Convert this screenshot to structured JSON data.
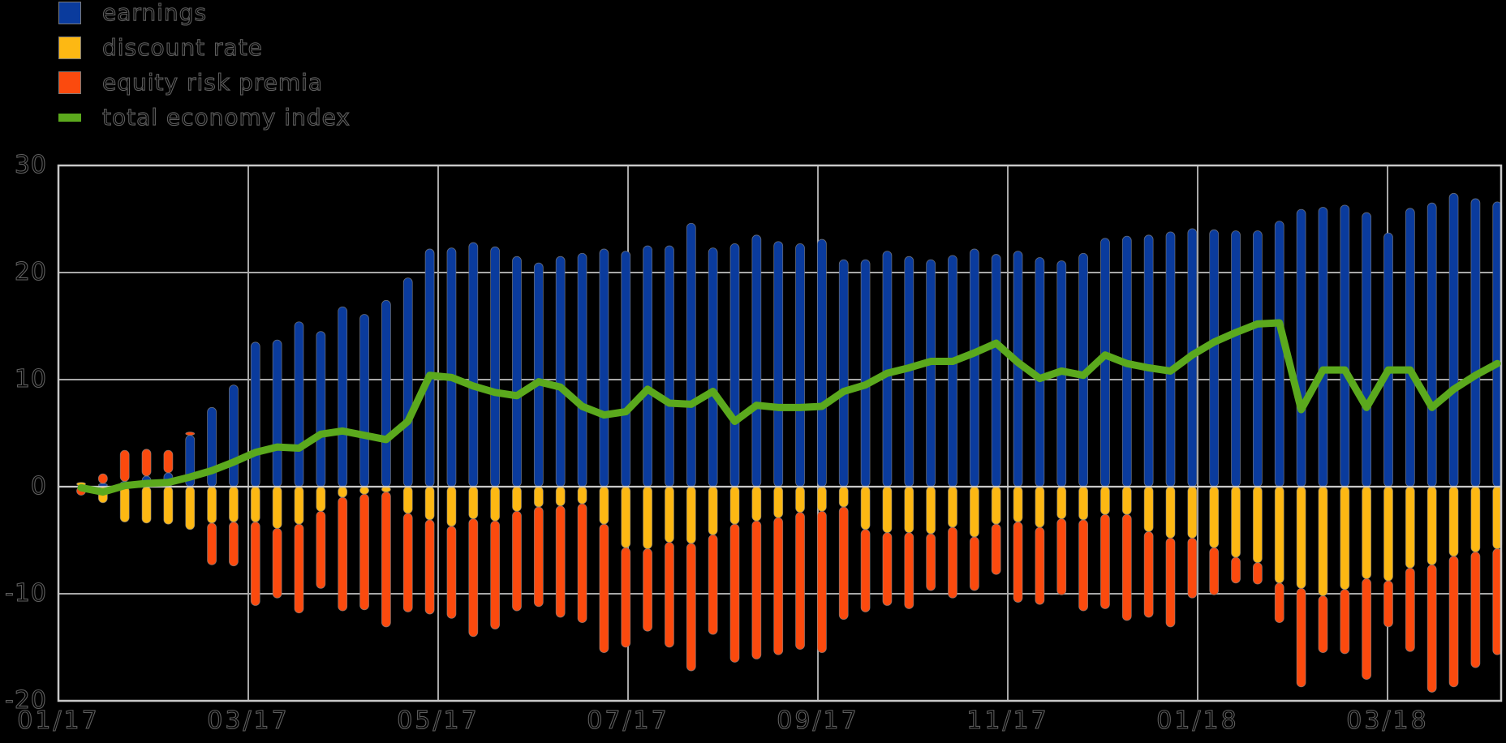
{
  "legend": {
    "items": [
      {
        "label": "earnings",
        "color": "#0a3b9d",
        "swatch": "square"
      },
      {
        "label": "discount rate",
        "color": "#fdb813",
        "swatch": "square"
      },
      {
        "label": "equity risk premia",
        "color": "#fb4a0e",
        "swatch": "square"
      },
      {
        "label": "total economy index",
        "color": "#5ba91d",
        "swatch": "line"
      }
    ]
  },
  "colors": {
    "background": "#000000",
    "gridline": "#a8a8a8",
    "frame": "#c8c8c8",
    "zero_line": "#c8c8c8",
    "bar_edge": "#8c8c8c"
  },
  "chart_data": {
    "type": "bar",
    "subtype": "stacked-bars-with-line-overlay",
    "x_frequency": "weekly",
    "x_tick_labels": [
      "01/17",
      "03/17",
      "05/17",
      "07/17",
      "09/17",
      "11/17",
      "01/18",
      "03/18"
    ],
    "y_ticks": [
      30,
      20,
      10,
      0,
      -10,
      -20
    ],
    "ylim": [
      -20,
      30
    ],
    "grid": true,
    "legend_position": "top-left",
    "series": [
      {
        "name": "earnings",
        "type": "bar",
        "color": "#0a3b9d",
        "values": [
          0.1,
          0.3,
          0.5,
          1.0,
          1.3,
          4.8,
          7.4,
          9.5,
          13.5,
          13.7,
          15.4,
          14.5,
          16.8,
          16.1,
          17.4,
          19.5,
          22.2,
          22.3,
          22.8,
          22.4,
          21.5,
          20.9,
          21.5,
          21.8,
          22.2,
          22.0,
          22.5,
          22.5,
          24.6,
          22.3,
          22.7,
          23.5,
          22.9,
          22.7,
          23.1,
          21.2,
          21.2,
          22.0,
          21.5,
          21.2,
          21.6,
          22.2,
          21.7,
          22.0,
          21.4,
          21.1,
          21.8,
          23.2,
          23.4,
          23.5,
          23.8,
          24.1,
          24.0,
          23.9,
          23.9,
          24.8,
          25.9,
          26.1,
          26.3,
          25.6,
          23.7,
          26.0,
          26.5,
          27.4,
          26.9,
          26.6
        ]
      },
      {
        "name": "discount rate",
        "type": "bar",
        "color": "#fdb813",
        "values": [
          0.3,
          -1.5,
          -3.3,
          -3.4,
          -3.5,
          -4.0,
          -3.4,
          -3.3,
          -3.3,
          -3.9,
          -3.5,
          -2.3,
          -1.0,
          -0.7,
          -0.5,
          -2.5,
          -3.1,
          -3.7,
          -3.0,
          -3.2,
          -2.3,
          -1.9,
          -1.8,
          -1.6,
          -3.5,
          -5.7,
          -5.8,
          -5.2,
          -5.3,
          -4.5,
          -3.5,
          -3.2,
          -2.9,
          -2.4,
          -2.3,
          -1.9,
          -4.0,
          -4.3,
          -4.3,
          -4.4,
          -3.8,
          -4.7,
          -3.5,
          -3.3,
          -3.8,
          -3.0,
          -3.1,
          -2.6,
          -2.6,
          -4.2,
          -4.8,
          -4.8,
          -5.7,
          -6.6,
          -7.1,
          -9.0,
          -9.5,
          -10.2,
          -9.6,
          -8.6,
          -8.8,
          -7.6,
          -7.3,
          -6.5,
          -6.1,
          -5.8
        ]
      },
      {
        "name": "equity risk premia",
        "type": "bar",
        "color": "#fb4a0e",
        "values": [
          -0.8,
          0.9,
          2.9,
          2.5,
          2.1,
          0.3,
          -3.9,
          -4.1,
          -7.8,
          -6.5,
          -8.3,
          -7.2,
          -10.6,
          -10.8,
          -12.6,
          -9.2,
          -8.8,
          -8.6,
          -11.0,
          -10.1,
          -9.3,
          -9.3,
          -10.4,
          -11.1,
          -12.0,
          -9.3,
          -7.7,
          -9.8,
          -11.9,
          -9.3,
          -12.9,
          -12.9,
          -12.8,
          -12.8,
          -13.2,
          -10.5,
          -7.7,
          -6.8,
          -7.1,
          -5.3,
          -6.6,
          -5.0,
          -4.7,
          -7.5,
          -7.2,
          -7.1,
          -8.5,
          -8.8,
          -9.9,
          -8.0,
          -8.3,
          -5.6,
          -4.4,
          -2.4,
          -2.0,
          -3.7,
          -9.2,
          -5.3,
          -6.0,
          -9.4,
          -4.3,
          -7.8,
          -11.9,
          -12.2,
          -10.8,
          -9.9
        ]
      },
      {
        "name": "total economy index",
        "type": "line",
        "color": "#5ba91d",
        "values": [
          -0.1,
          -0.5,
          0.1,
          0.3,
          0.4,
          0.9,
          1.5,
          2.3,
          3.2,
          3.7,
          3.6,
          4.9,
          5.2,
          4.8,
          4.4,
          6.1,
          10.4,
          10.2,
          9.4,
          8.8,
          8.5,
          9.8,
          9.3,
          7.5,
          6.7,
          7.0,
          9.1,
          7.8,
          7.7,
          8.9,
          6.1,
          7.6,
          7.4,
          7.4,
          7.5,
          8.9,
          9.5,
          10.6,
          11.1,
          11.7,
          11.7,
          12.5,
          13.4,
          11.6,
          10.1,
          10.8,
          10.4,
          12.3,
          11.5,
          11.1,
          10.8,
          12.3,
          13.5,
          14.4,
          15.2,
          15.3,
          7.2,
          10.9,
          10.9,
          7.4,
          10.9,
          10.9,
          7.4,
          9.1,
          10.4,
          11.5
        ]
      }
    ]
  }
}
